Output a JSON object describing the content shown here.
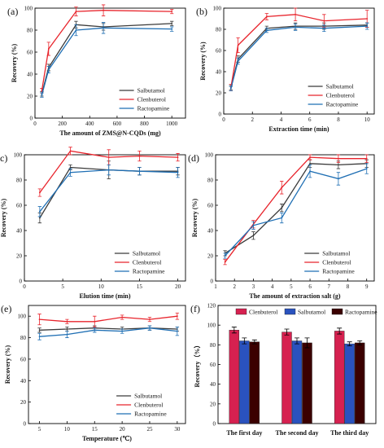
{
  "colors": {
    "Salbutamol": "#3a3a3a",
    "Clenbuterol": "#e8242c",
    "Ractopamine": "#1f6fb4",
    "bar_Clenbuterol": "#d62150",
    "bar_Salbutamol": "#2a52be",
    "bar_Ractopamine": "#3b0000"
  },
  "chart_data": [
    {
      "id": "a",
      "panel_label": "(a)",
      "type": "line",
      "xlabel": "The amount of ZMS@N-CQDs (mg)",
      "ylabel": "Recovery (%)",
      "xlim": [
        0,
        1100
      ],
      "ylim": [
        0,
        100
      ],
      "xticks": [
        0,
        200,
        400,
        600,
        800,
        1000
      ],
      "yticks": [
        0,
        20,
        40,
        60,
        80,
        100
      ],
      "legend": "bottom-right",
      "grid": false,
      "series": [
        {
          "name": "Salbutamol",
          "x": [
            50,
            100,
            300,
            500,
            1000
          ],
          "y": [
            22,
            46,
            85,
            83,
            86
          ],
          "err": [
            2,
            3,
            3,
            3,
            2
          ]
        },
        {
          "name": "Clenbuterol",
          "x": [
            50,
            100,
            300,
            500,
            1000
          ],
          "y": [
            25,
            63,
            97,
            98,
            97
          ],
          "err": [
            2,
            6,
            4,
            5,
            2
          ]
        },
        {
          "name": "Ractopamine",
          "x": [
            50,
            100,
            300,
            500,
            1000
          ],
          "y": [
            21,
            44,
            80,
            82,
            81
          ],
          "err": [
            2,
            3,
            5,
            5,
            2
          ]
        }
      ]
    },
    {
      "id": "b",
      "panel_label": "(b)",
      "type": "line",
      "xlabel": "Extraction time (min)",
      "ylabel": "Recovery (%)",
      "xlim": [
        0,
        10.5
      ],
      "ylim": [
        0,
        100
      ],
      "xticks": [
        0,
        2,
        4,
        6,
        8,
        10
      ],
      "yticks": [
        0,
        20,
        40,
        60,
        80,
        100
      ],
      "legend": "bottom-right",
      "grid": false,
      "series": [
        {
          "name": "Salbutamol",
          "x": [
            0.5,
            1,
            3,
            5,
            7,
            10
          ],
          "y": [
            25,
            52,
            81,
            83,
            83,
            84
          ],
          "err": [
            2,
            3,
            2,
            3,
            3,
            2
          ]
        },
        {
          "name": "Clenbuterol",
          "x": [
            0.5,
            1,
            3,
            5,
            7,
            10
          ],
          "y": [
            25,
            65,
            92,
            94,
            88,
            90
          ],
          "err": [
            3,
            7,
            3,
            6,
            6,
            8
          ]
        },
        {
          "name": "Ractopamine",
          "x": [
            0.5,
            1,
            3,
            5,
            7,
            10
          ],
          "y": [
            24,
            50,
            79,
            82,
            81,
            83
          ],
          "err": [
            2,
            3,
            2,
            3,
            3,
            3
          ]
        }
      ]
    },
    {
      "id": "c",
      "panel_label": "(c)",
      "type": "line",
      "xlabel": "Elution time (min)",
      "ylabel": "Recovery (%)",
      "xlim": [
        0,
        21
      ],
      "ylim": [
        0,
        100
      ],
      "xticks": [
        0,
        5,
        10,
        15,
        20
      ],
      "yticks": [
        0,
        20,
        40,
        60,
        80,
        100
      ],
      "legend": "bottom-right",
      "grid": false,
      "series": [
        {
          "name": "Salbutamol",
          "x": [
            2,
            6,
            11,
            15,
            20
          ],
          "y": [
            50,
            90,
            88,
            87,
            87
          ],
          "err": [
            4,
            2,
            7,
            3,
            3
          ]
        },
        {
          "name": "Clenbuterol",
          "x": [
            2,
            6,
            11,
            15,
            20
          ],
          "y": [
            70,
            103,
            98,
            99,
            98
          ],
          "err": [
            3,
            3,
            6,
            4,
            3
          ]
        },
        {
          "name": "Ractopamine",
          "x": [
            2,
            6,
            11,
            15,
            20
          ],
          "y": [
            55,
            86,
            88,
            87,
            86
          ],
          "err": [
            4,
            3,
            4,
            3,
            4
          ]
        }
      ]
    },
    {
      "id": "d",
      "panel_label": "(d)",
      "type": "line",
      "xlabel": "The amount of extraction salt (g)",
      "ylabel": "Recovery (%)",
      "xlim": [
        1,
        9.4
      ],
      "ylim": [
        0,
        100
      ],
      "xticks": [
        1,
        2,
        3,
        4,
        5,
        6,
        7,
        8,
        9
      ],
      "yticks": [
        0,
        20,
        40,
        60,
        80,
        100
      ],
      "legend": "bottom-right",
      "grid": false,
      "series": [
        {
          "name": "Salbutamol",
          "x": [
            1.5,
            3,
            4.5,
            6,
            7.5,
            9
          ],
          "y": [
            22,
            36,
            58,
            93,
            92,
            93
          ],
          "err": [
            2,
            3,
            3,
            3,
            3,
            3
          ]
        },
        {
          "name": "Clenbuterol",
          "x": [
            1.5,
            3,
            4.5,
            6,
            7.5,
            9
          ],
          "y": [
            15,
            45,
            74,
            98,
            97,
            97
          ],
          "err": [
            2,
            3,
            5,
            2,
            3,
            3
          ]
        },
        {
          "name": "Ractopamine",
          "x": [
            1.5,
            3,
            4.5,
            6,
            7.5,
            9
          ],
          "y": [
            20,
            44,
            50,
            87,
            81,
            89
          ],
          "err": [
            2,
            3,
            4,
            5,
            5,
            4
          ]
        }
      ]
    },
    {
      "id": "e",
      "panel_label": "(e)",
      "type": "line",
      "xlabel": "Temperature (℃)",
      "ylabel": "Recovery (%)",
      "xlim": [
        3,
        31.5
      ],
      "ylim": [
        0,
        110
      ],
      "xticks": [
        5,
        10,
        15,
        20,
        25,
        30
      ],
      "yticks": [
        0,
        20,
        40,
        60,
        80,
        100
      ],
      "legend": "bottom-right",
      "grid": false,
      "series": [
        {
          "name": "Salbutamol",
          "x": [
            5,
            10,
            15,
            20,
            25,
            30
          ],
          "y": [
            87,
            88,
            89,
            88,
            89,
            88
          ],
          "err": [
            2,
            2,
            2,
            2,
            2,
            2
          ]
        },
        {
          "name": "Clenbuterol",
          "x": [
            5,
            10,
            15,
            20,
            25,
            30
          ],
          "y": [
            97,
            95,
            95,
            99,
            97,
            100
          ],
          "err": [
            5,
            2,
            5,
            2,
            2,
            3
          ]
        },
        {
          "name": "Ractopamine",
          "x": [
            5,
            10,
            15,
            20,
            25,
            30
          ],
          "y": [
            81,
            83,
            87,
            86,
            89,
            86
          ],
          "err": [
            3,
            3,
            2,
            2,
            2,
            4
          ]
        }
      ]
    },
    {
      "id": "f",
      "panel_label": "(f)",
      "type": "bar",
      "xlabel": "",
      "ylabel": "Recovery（%）",
      "ylim": [
        0,
        120
      ],
      "yticks": [
        0,
        20,
        40,
        60,
        80,
        100,
        120
      ],
      "categories": [
        "The first day",
        "The second day",
        "The third day"
      ],
      "legend": "top",
      "grid": false,
      "series": [
        {
          "name": "Clenbuterol",
          "values": [
            95,
            93,
            94
          ],
          "err": [
            3,
            3,
            3
          ]
        },
        {
          "name": "Salbutamol",
          "values": [
            84,
            84,
            81
          ],
          "err": [
            3,
            3,
            2
          ]
        },
        {
          "name": "Ractopamine",
          "values": [
            83,
            82,
            82
          ],
          "err": [
            2,
            5,
            2
          ]
        }
      ]
    }
  ]
}
